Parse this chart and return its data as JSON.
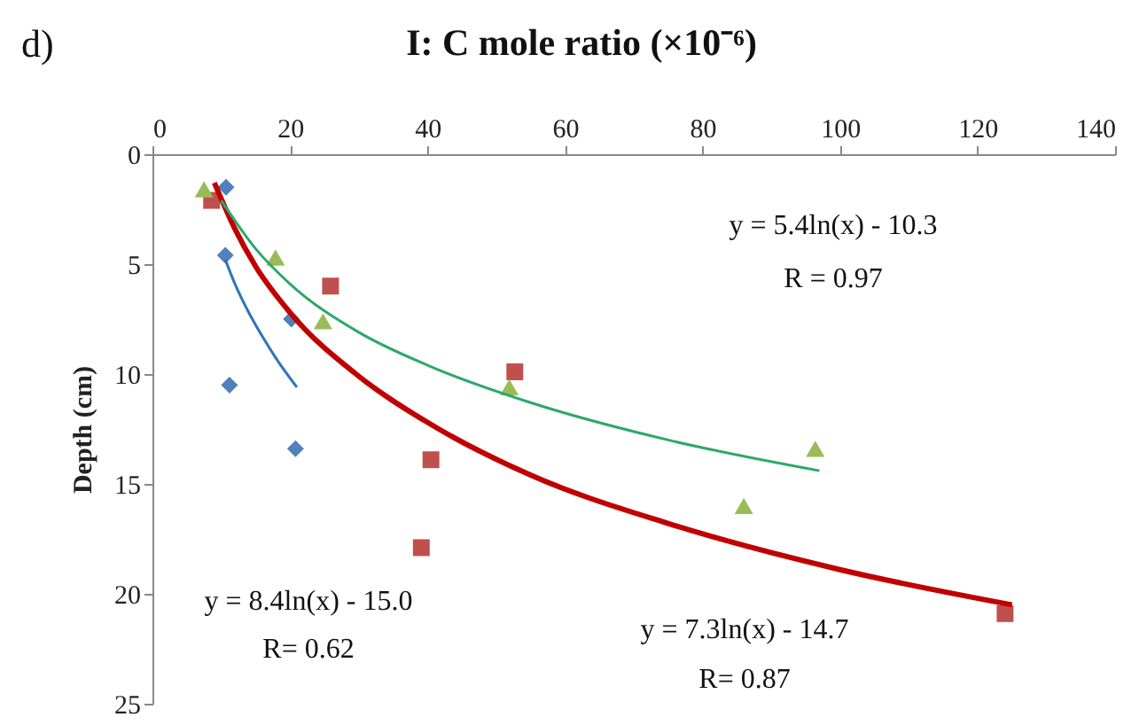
{
  "chart_data": {
    "type": "scatter",
    "title": "I: C mole ratio (×10⁻⁶)",
    "ylabel": "Depth (cm)",
    "xlim": [
      0,
      140
    ],
    "xticks": [
      0,
      20,
      40,
      60,
      80,
      100,
      120,
      140
    ],
    "ylim": [
      25,
      0
    ],
    "yticks": [
      0,
      5,
      10,
      15,
      20,
      25
    ],
    "grid": false,
    "series": [
      {
        "marker": "diamond",
        "color": "#4f81bd",
        "x": [
          10.7,
          10.6,
          20.2,
          11.2,
          20.8
        ],
        "values": [
          1.5,
          4.6,
          7.5,
          10.5,
          13.4
        ]
      },
      {
        "marker": "square",
        "color": "#c0504d",
        "x": [
          8.6,
          25.9,
          52.7,
          40.5,
          39.1,
          124
        ],
        "values": [
          2.1,
          6.0,
          9.9,
          13.9,
          17.9,
          20.9
        ]
      },
      {
        "marker": "triangle",
        "color": "#9bbb59",
        "x": [
          7.5,
          17.9,
          24.8,
          51.9,
          96.4,
          86
        ],
        "values": [
          1.6,
          4.7,
          7.6,
          10.6,
          13.4,
          16.0
        ]
      },
      {
        "type": "line",
        "color": "#2e75b6",
        "x": [
          10.6,
          12,
          14,
          16,
          18,
          21
        ],
        "values": [
          4.8,
          5.9,
          7.2,
          8.3,
          9.3,
          10.6
        ]
      },
      {
        "type": "line",
        "color": "#c00000",
        "x": [
          9,
          12,
          15,
          20,
          30,
          40,
          55,
          75,
          100,
          125
        ],
        "values": [
          1.3,
          3.4,
          5.1,
          7.2,
          10.1,
          12.2,
          14.6,
          16.8,
          18.9,
          20.5
        ]
      },
      {
        "type": "line",
        "color": "#2ca86b",
        "x": [
          10,
          15,
          20,
          30,
          40,
          55,
          75,
          97
        ],
        "values": [
          2.1,
          4.3,
          5.9,
          8.1,
          9.6,
          11.3,
          13.0,
          14.4
        ]
      }
    ],
    "annotations": [
      "d)",
      "y = 5.4ln(x) - 10.3",
      "R = 0.97",
      "y = 8.4ln(x) - 15.0",
      "R= 0.62",
      "y = 7.3ln(x) - 14.7",
      "R= 0.87"
    ]
  }
}
